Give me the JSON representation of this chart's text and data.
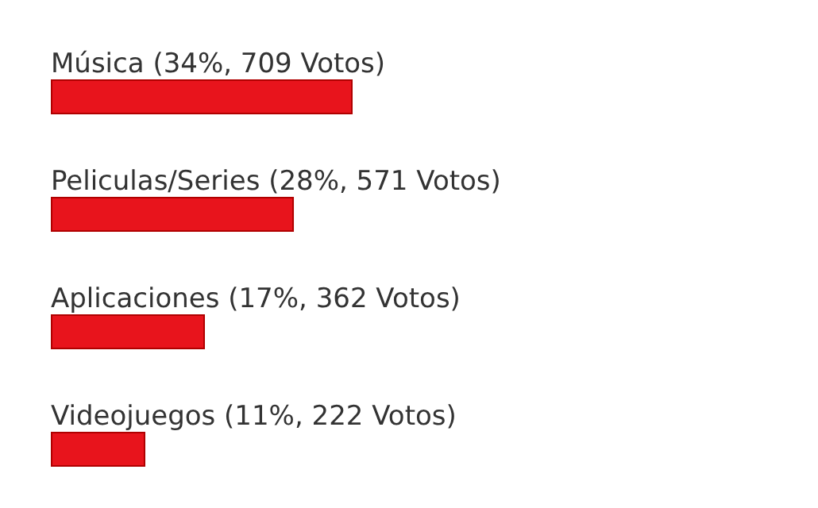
{
  "chart_data": {
    "type": "bar",
    "orientation": "horizontal",
    "categories": [
      "Música",
      "Peliculas/Series",
      "Aplicaciones",
      "Videojuegos"
    ],
    "values": [
      709,
      571,
      362,
      222
    ],
    "value_labels": [
      "(34%, 709 Votos)",
      "(28%, 571 Votos)",
      "(17%, 362 Votos)",
      "(11%, 222 Votos)"
    ],
    "color": "#e8141c"
  }
}
